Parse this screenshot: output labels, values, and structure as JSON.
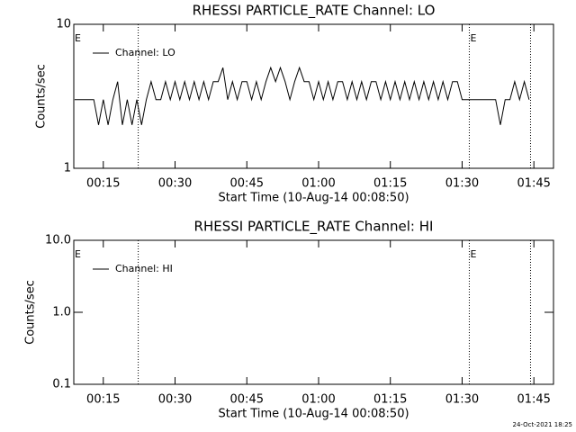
{
  "chart_data": [
    {
      "type": "line",
      "title": "RHESSI PARTICLE_RATE Channel: LO",
      "ylabel": "Counts/sec",
      "xlabel": "Start Time (10-Aug-14 00:08:50)",
      "log_y": true,
      "ylim": [
        1,
        10
      ],
      "yticks": [
        1,
        10
      ],
      "xlim": [
        8.833,
        109.1
      ],
      "xticks": [
        {
          "value": 15,
          "label": "00:15"
        },
        {
          "value": 30,
          "label": "00:30"
        },
        {
          "value": 45,
          "label": "00:45"
        },
        {
          "value": 60,
          "label": "01:00"
        },
        {
          "value": 75,
          "label": "01:15"
        },
        {
          "value": 90,
          "label": "01:30"
        },
        {
          "value": 105,
          "label": "01:45"
        }
      ],
      "vlines": [
        22.3,
        91.5,
        104.3
      ],
      "annotations": [
        {
          "text": "E",
          "x": 8.833
        },
        {
          "text": "E",
          "x": 91.5
        }
      ],
      "x": [
        9,
        10,
        11,
        12,
        13,
        14,
        15,
        16,
        17,
        18,
        19,
        20,
        21,
        22,
        23,
        24,
        25,
        26,
        27,
        28,
        29,
        30,
        31,
        32,
        33,
        34,
        35,
        36,
        37,
        38,
        39,
        40,
        41,
        42,
        43,
        44,
        45,
        46,
        47,
        48,
        49,
        50,
        51,
        52,
        53,
        54,
        55,
        56,
        57,
        58,
        59,
        60,
        61,
        62,
        63,
        64,
        65,
        66,
        67,
        68,
        69,
        70,
        71,
        72,
        73,
        74,
        75,
        76,
        77,
        78,
        79,
        80,
        81,
        82,
        83,
        84,
        85,
        86,
        87,
        88,
        89,
        90,
        91,
        92,
        93,
        94,
        95,
        96,
        97,
        98,
        99,
        100,
        101,
        102,
        103,
        104
      ],
      "series": [
        {
          "name": "Channel: LO",
          "color": "#000000",
          "values": [
            3,
            3,
            3,
            3,
            3,
            2,
            3,
            2,
            3,
            4,
            2,
            3,
            2,
            3,
            2,
            3,
            4,
            3,
            3,
            4,
            3,
            4,
            3,
            4,
            3,
            4,
            3,
            4,
            3,
            4,
            4,
            5,
            3,
            4,
            3,
            4,
            4,
            3,
            4,
            3,
            4,
            5,
            4,
            5,
            4,
            3,
            4,
            5,
            4,
            4,
            3,
            4,
            3,
            4,
            3,
            4,
            4,
            3,
            4,
            3,
            4,
            3,
            4,
            4,
            3,
            4,
            3,
            4,
            3,
            4,
            3,
            4,
            3,
            4,
            3,
            4,
            3,
            4,
            3,
            4,
            4,
            3,
            3,
            3,
            3,
            3,
            3,
            3,
            3,
            2,
            3,
            3,
            4,
            3,
            4,
            3
          ]
        }
      ]
    },
    {
      "type": "line",
      "title": "RHESSI PARTICLE_RATE Channel: HI",
      "ylabel": "Counts/sec",
      "xlabel": "Start Time (10-Aug-14 00:08:50)",
      "log_y": true,
      "ylim": [
        0.1,
        10
      ],
      "yticks": [
        0.1,
        {
          "value": 1,
          "label": "1.0"
        },
        {
          "value": 10,
          "label": "10.0"
        }
      ],
      "xlim": [
        8.833,
        109.1
      ],
      "xticks": [
        {
          "value": 15,
          "label": "00:15"
        },
        {
          "value": 30,
          "label": "00:30"
        },
        {
          "value": 45,
          "label": "00:45"
        },
        {
          "value": 60,
          "label": "01:00"
        },
        {
          "value": 75,
          "label": "01:15"
        },
        {
          "value": 90,
          "label": "01:30"
        },
        {
          "value": 105,
          "label": "01:45"
        }
      ],
      "vlines": [
        22.3,
        91.5,
        104.3
      ],
      "annotations": [
        {
          "text": "E",
          "x": 8.833
        },
        {
          "text": "E",
          "x": 91.5
        }
      ],
      "x": [],
      "series": [
        {
          "name": "Channel: HI",
          "color": "#000000",
          "values": []
        }
      ]
    }
  ],
  "footer": "24-Oct-2021 18:25"
}
